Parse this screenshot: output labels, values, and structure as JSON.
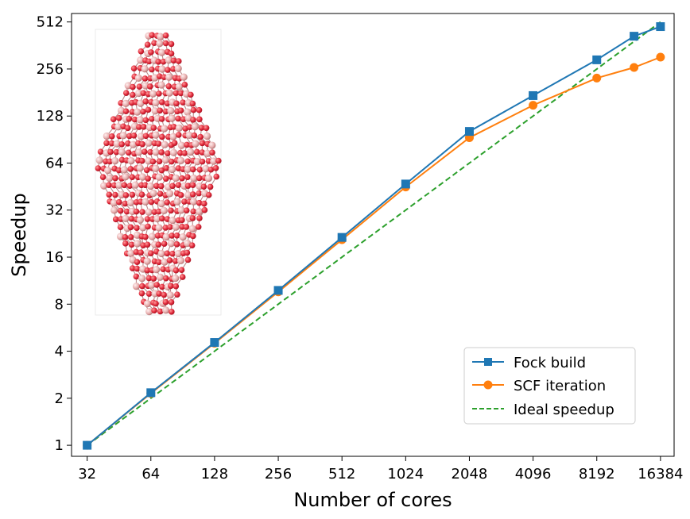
{
  "chart_data": {
    "type": "line",
    "xscale": "log2",
    "yscale": "log2",
    "xlabel": "Number of cores",
    "ylabel": "Speedup",
    "x_ticks": [
      32,
      64,
      128,
      256,
      512,
      1024,
      2048,
      4096,
      8192,
      16384
    ],
    "x_tick_labels": [
      "32",
      "64",
      "128",
      "256",
      "512",
      "1024",
      "2048",
      "4096",
      "8192",
      "16384"
    ],
    "y_ticks": [
      1,
      2,
      4,
      8,
      16,
      32,
      64,
      128,
      256,
      512
    ],
    "y_tick_labels": [
      "1",
      "2",
      "4",
      "8",
      "16",
      "32",
      "64",
      "128",
      "256",
      "512"
    ],
    "xlim": [
      27,
      19000
    ],
    "ylim": [
      0.85,
      580
    ],
    "legend_position": "lower-right",
    "series": [
      {
        "name": "Fock build",
        "color": "#1f77b4",
        "marker": "square",
        "linestyle": "solid",
        "x": [
          32,
          64,
          128,
          256,
          512,
          1024,
          2048,
          4096,
          8192,
          12288,
          16384
        ],
        "y": [
          1.0,
          2.17,
          4.55,
          9.8,
          21.4,
          47.0,
          102,
          173,
          293,
          415,
          478
        ]
      },
      {
        "name": "SCF iteration",
        "color": "#ff7f0e",
        "marker": "circle",
        "linestyle": "solid",
        "x": [
          32,
          64,
          128,
          256,
          512,
          1024,
          2048,
          4096,
          8192,
          12288,
          16384
        ],
        "y": [
          1.0,
          2.15,
          4.5,
          9.6,
          20.7,
          45.0,
          93,
          150,
          224,
          262,
          305
        ]
      },
      {
        "name": "Ideal speedup",
        "color": "#2ca02c",
        "marker": "none",
        "linestyle": "dashed",
        "x": [
          32,
          16384
        ],
        "y": [
          1,
          512
        ]
      }
    ]
  }
}
